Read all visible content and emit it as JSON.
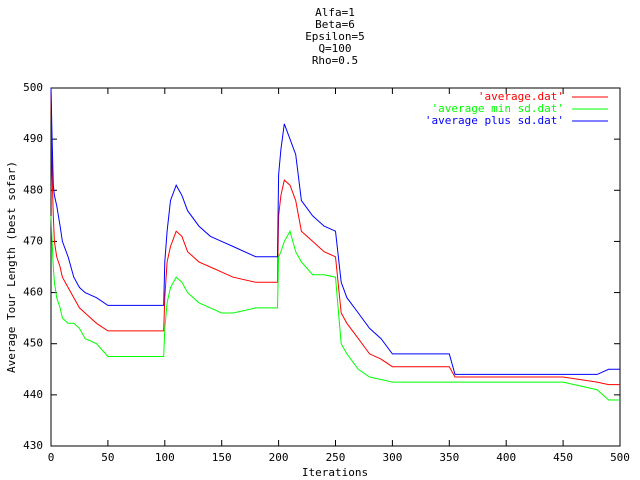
{
  "chart_data": {
    "type": "line",
    "title": [
      "Alfa=1",
      "Beta=6",
      "Epsilon=5",
      "Q=100",
      "Rho=0.5"
    ],
    "xlabel": "Iterations",
    "ylabel": "Average Tour Length (best sofar)",
    "x": [
      0,
      1,
      2,
      3,
      5,
      8,
      10,
      15,
      20,
      25,
      30,
      40,
      50,
      60,
      80,
      99,
      100,
      102,
      105,
      110,
      115,
      120,
      130,
      140,
      150,
      160,
      180,
      199,
      200,
      202,
      205,
      210,
      215,
      220,
      230,
      240,
      250,
      255,
      260,
      270,
      280,
      290,
      300,
      350,
      355,
      400,
      450,
      480,
      490,
      500
    ],
    "series": [
      {
        "name": "'average.dat'",
        "color": "#ff0000",
        "values": [
          500,
          483,
          475,
          470,
          467,
          465,
          463,
          461,
          459,
          457,
          456,
          454,
          452.5,
          452.5,
          452.5,
          452.5,
          459,
          466,
          469,
          472,
          471,
          468,
          466,
          465,
          464,
          463,
          462,
          462,
          475,
          479,
          482,
          481,
          478,
          472,
          470,
          468,
          467,
          456,
          454,
          451,
          448,
          447,
          445.5,
          445.5,
          443.5,
          443.5,
          443.5,
          442.5,
          442,
          442
        ]
      },
      {
        "name": "'average min sd.dat'",
        "color": "#00ff00",
        "values": [
          475,
          470,
          465,
          462,
          459,
          457,
          455,
          454,
          454,
          453,
          451,
          450,
          447.5,
          447.5,
          447.5,
          447.5,
          453,
          458,
          461,
          463,
          462,
          460,
          458,
          457,
          456,
          456,
          457,
          457,
          467,
          468,
          470,
          472,
          468,
          466,
          463.5,
          463.5,
          463,
          450,
          448,
          445,
          443.5,
          443,
          442.5,
          442.5,
          442.5,
          442.5,
          442.5,
          441,
          439,
          439
        ]
      },
      {
        "name": "'average plus sd.dat'",
        "color": "#0000ff",
        "values": [
          500,
          490,
          481,
          479,
          477,
          473,
          470,
          467,
          463,
          461,
          460,
          459,
          457.5,
          457.5,
          457.5,
          457.5,
          466,
          472,
          478,
          481,
          479,
          476,
          473,
          471,
          470,
          469,
          467,
          467,
          483,
          488,
          493,
          490,
          487,
          478,
          475,
          473,
          472,
          462,
          459,
          456,
          453,
          451,
          448,
          448,
          444,
          444,
          444,
          444,
          445,
          445
        ]
      }
    ],
    "xlim": [
      0,
      500
    ],
    "xticks": [
      0,
      50,
      100,
      150,
      200,
      250,
      300,
      350,
      400,
      450,
      500
    ],
    "ylim": [
      430,
      500
    ],
    "yticks": [
      430,
      440,
      450,
      460,
      470,
      480,
      490,
      500
    ],
    "grid": false,
    "legend": "top-right"
  }
}
